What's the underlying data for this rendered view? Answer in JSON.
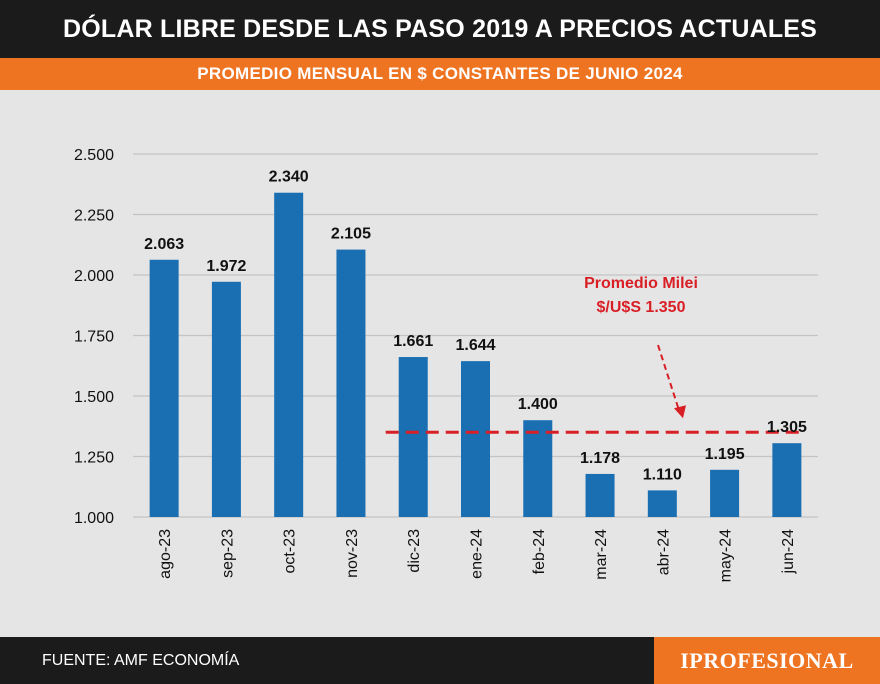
{
  "header": {
    "title": "DÓLAR LIBRE DESDE LAS PASO 2019 A PRECIOS ACTUALES",
    "subtitle": "PROMEDIO MENSUAL EN $ CONSTANTES DE JUNIO 2024"
  },
  "colors": {
    "bar": "#1a6fb3",
    "accent": "#ee7422",
    "reference_line": "#d91f26",
    "dark": "#1b1b1b"
  },
  "chart_data": {
    "type": "bar",
    "title": "DÓLAR LIBRE DESDE LAS PASO 2019 A PRECIOS ACTUALES",
    "subtitle": "PROMEDIO MENSUAL EN $ CONSTANTES DE JUNIO 2024",
    "xlabel": "",
    "ylabel": "",
    "ylim": [
      1000,
      2500
    ],
    "grid": true,
    "yticks": [
      1000,
      1250,
      1500,
      1750,
      2000,
      2250,
      2500
    ],
    "ytick_labels": [
      "1.000",
      "1.250",
      "1.500",
      "1.750",
      "2.000",
      "2.250",
      "2.500"
    ],
    "categories": [
      "ago-23",
      "sep-23",
      "oct-23",
      "nov-23",
      "dic-23",
      "ene-24",
      "feb-24",
      "mar-24",
      "abr-24",
      "may-24",
      "jun-24"
    ],
    "values": [
      2063,
      1972,
      2340,
      2105,
      1661,
      1644,
      1400,
      1178,
      1110,
      1195,
      1305
    ],
    "value_labels": [
      "2.063",
      "1.972",
      "2.340",
      "2.105",
      "1.661",
      "1.644",
      "1.400",
      "1.178",
      "1.110",
      "1.195",
      "1.305"
    ],
    "reference_line": {
      "value": 1350,
      "start_category": "dic-23",
      "end_category": "jun-24",
      "style": "dashed"
    },
    "annotation": {
      "lines": [
        "Promedio Milei",
        "$/U$S 1.350"
      ]
    }
  },
  "footer": {
    "source": "FUENTE: AMF ECONOMÍA",
    "brand": "IPROFESIONAL"
  }
}
